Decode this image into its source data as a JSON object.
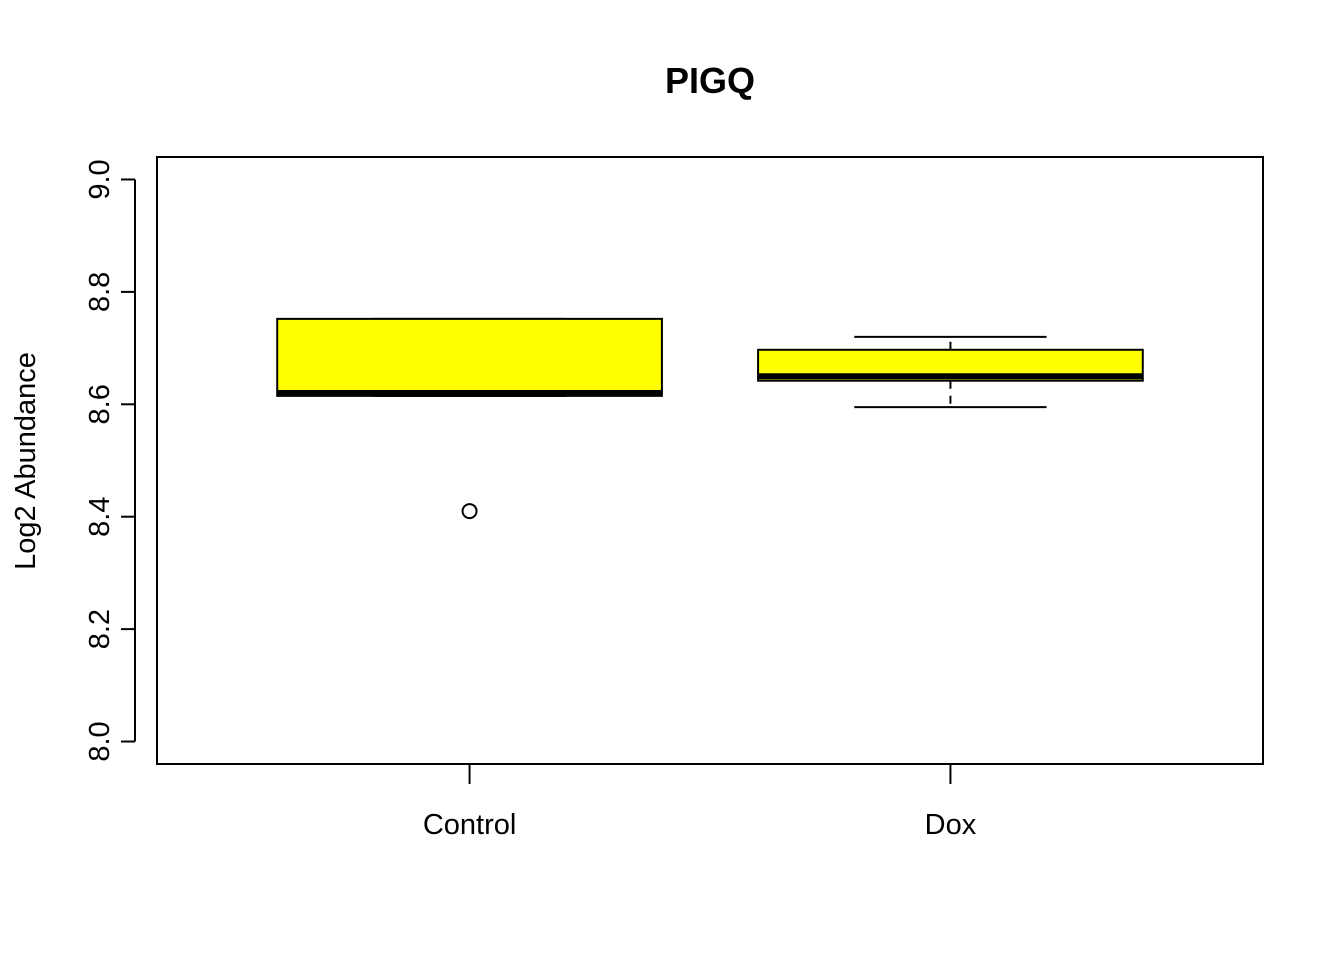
{
  "chart_data": {
    "type": "boxplot",
    "title": "PIGQ",
    "xlabel": "",
    "ylabel": "Log2 Abundance",
    "ylim": [
      7.96,
      9.04
    ],
    "yticks": [
      8.0,
      8.2,
      8.4,
      8.6,
      8.8,
      9.0
    ],
    "ytick_labels": [
      "8.0",
      "8.2",
      "8.4",
      "8.6",
      "8.8",
      "9.0"
    ],
    "grid": false,
    "box_color": "#ffff00",
    "categories": [
      "Control",
      "Dox"
    ],
    "boxes": [
      {
        "category": "Control",
        "whisker_low": 8.615,
        "q1": 8.615,
        "median": 8.62,
        "q3": 8.752,
        "whisker_high": 8.752,
        "outliers": [
          8.41
        ]
      },
      {
        "category": "Dox",
        "whisker_low": 8.595,
        "q1": 8.642,
        "median": 8.65,
        "q3": 8.697,
        "whisker_high": 8.72,
        "outliers": []
      }
    ]
  }
}
